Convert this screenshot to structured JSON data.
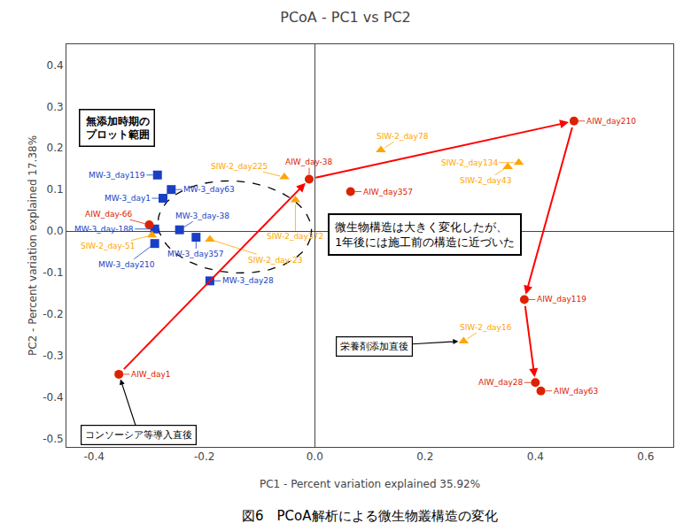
{
  "chart_data": {
    "type": "scatter",
    "title": "PCoA - PC1 vs PC2",
    "x_label": "PC1 - Percent variation explained 35.92%",
    "y_label": "PC2 - Percent variation explained 17.38%",
    "caption": "図6　PCoA解析による微生物叢構造の変化",
    "xlim": [
      -0.45,
      0.65
    ],
    "ylim": [
      -0.52,
      0.45
    ],
    "xticks": [
      -0.4,
      -0.2,
      {
        "value": 0,
        "label": "0.0"
      },
      0.2,
      0.4,
      0.6
    ],
    "yticks": [
      -0.5,
      -0.4,
      -0.3,
      -0.2,
      -0.1,
      {
        "value": 0,
        "label": "0.0"
      },
      0.1,
      0.2,
      0.3,
      0.4
    ],
    "grid": false,
    "series": [
      {
        "color": "#1a3fc4",
        "marker": "square",
        "x": [
          -0.285,
          -0.26,
          -0.275,
          -0.29,
          -0.245,
          -0.215,
          -0.29,
          -0.19
        ],
        "y": [
          0.135,
          0.1,
          0.079,
          0.005,
          0.003,
          -0.015,
          -0.03,
          -0.12
        ],
        "labels": [
          "MW-3_day119",
          "MW-3_day63",
          "MW-3_day1",
          "MW-3_day-188",
          "MW-3_day-38",
          "MW-3_day357",
          "MW-3_day210",
          "MW-3_day28"
        ]
      },
      {
        "color": "#FFA500",
        "marker": "triangle",
        "x": [
          -0.055,
          -0.035,
          0.12,
          0.37,
          0.35,
          -0.295,
          -0.19,
          0.27
        ],
        "y": [
          0.13,
          0.075,
          0.195,
          0.165,
          0.155,
          -0.01,
          -0.02,
          -0.265
        ],
        "labels": [
          "SIW-2_day225",
          "SIW-2_day372",
          "SIW-2_day78",
          "SIW-2_day134",
          "SIW-2_day43",
          "SIW-2_day-51",
          "SIW-2_day-23",
          "SIW-2_day16"
        ]
      },
      {
        "color": "#dd2200",
        "marker": "circle",
        "x": [
          -0.355,
          -0.3,
          -0.01,
          0.065,
          0.47,
          0.38,
          0.4,
          0.41
        ],
        "y": [
          -0.345,
          0.015,
          0.125,
          0.095,
          0.265,
          -0.165,
          -0.365,
          -0.385
        ],
        "labels": [
          "AIW_day1",
          "AIW_day-66",
          "AIW_day-38",
          "AIW_day357",
          "AIW_day210",
          "AIW_day119",
          "AIW_day28",
          "AIW_day63"
        ]
      }
    ],
    "arrows": {
      "color": "red",
      "segments": [
        {
          "x1": -0.355,
          "y1": -0.345,
          "x2": -0.01,
          "y2": 0.125
        },
        {
          "x1": -0.01,
          "y1": 0.125,
          "x2": 0.47,
          "y2": 0.265
        },
        {
          "x1": 0.47,
          "y1": 0.265,
          "x2": 0.38,
          "y2": -0.165
        },
        {
          "x1": 0.38,
          "y1": -0.165,
          "x2": 0.4,
          "y2": -0.365
        }
      ]
    },
    "ellipse": {
      "x": -0.145,
      "y": 0.01,
      "width": 0.28,
      "height": 0.22,
      "angle": -10,
      "color": "black",
      "line_style": "dashed"
    },
    "annotations": [
      {
        "text": "微生物構造は大きく変化したが、\n1年後には施工前の構造に近づいた"
      },
      {
        "text": "無添加時期の\nプロット範囲"
      },
      {
        "text": "栄養剤添加直後",
        "x": 0.27,
        "y": -0.265
      },
      {
        "text": "コンソーシア等導入直後",
        "x": -0.355,
        "y": -0.345
      }
    ]
  }
}
